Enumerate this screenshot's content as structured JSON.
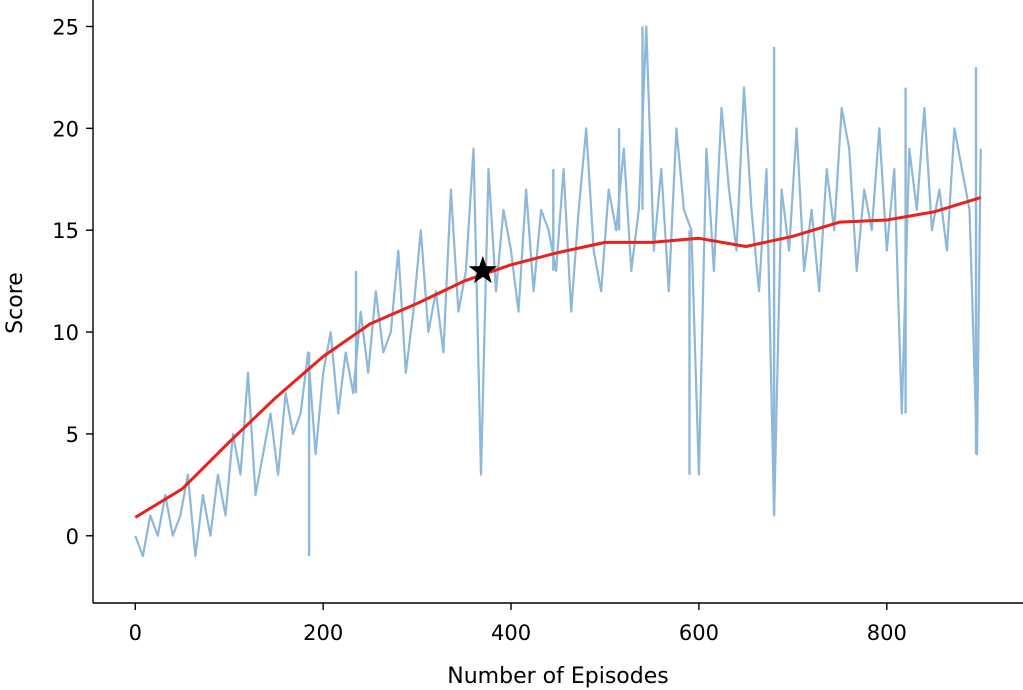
{
  "chart_data": {
    "type": "line",
    "title": "",
    "xlabel": "Number of Episodes",
    "ylabel": "Score",
    "xlim": [
      -45,
      945
    ],
    "ylim": [
      -3.3,
      26.3
    ],
    "xticks": [
      0,
      200,
      400,
      600,
      800
    ],
    "yticks": [
      0,
      5,
      10,
      15,
      20,
      25
    ],
    "grid": false,
    "legend": "none",
    "spines": [
      "left",
      "bottom"
    ],
    "series": [
      {
        "role": "raw-scores",
        "color": "#8db8d9",
        "x": [
          0,
          8,
          16,
          24,
          32,
          40,
          48,
          56,
          64,
          72,
          80,
          88,
          96,
          104,
          112,
          120,
          128,
          136,
          144,
          152,
          160,
          168,
          176,
          184,
          192,
          200,
          208,
          216,
          224,
          232,
          240,
          248,
          256,
          264,
          272,
          280,
          288,
          296,
          304,
          312,
          320,
          328,
          336,
          344,
          352,
          360,
          368,
          376,
          384,
          392,
          400,
          408,
          416,
          424,
          432,
          440,
          448,
          456,
          464,
          472,
          480,
          488,
          496,
          504,
          512,
          520,
          528,
          536,
          544,
          552,
          560,
          568,
          576,
          584,
          592,
          600,
          608,
          616,
          624,
          632,
          640,
          648,
          656,
          664,
          672,
          680,
          688,
          696,
          704,
          712,
          720,
          728,
          736,
          744,
          752,
          760,
          768,
          776,
          784,
          792,
          800,
          808,
          816,
          824,
          832,
          840,
          848,
          856,
          864,
          872,
          880,
          888,
          896,
          900
        ],
        "y": [
          0,
          -1,
          1,
          0,
          2,
          0,
          1,
          3,
          -1,
          2,
          0,
          3,
          1,
          5,
          3,
          8,
          2,
          4,
          6,
          3,
          7,
          5,
          6,
          9,
          4,
          8,
          10,
          6,
          9,
          7,
          11,
          8,
          12,
          9,
          10,
          14,
          8,
          11,
          15,
          10,
          12,
          9,
          17,
          11,
          13,
          19,
          3,
          18,
          12,
          16,
          14,
          11,
          17,
          12,
          16,
          15,
          13,
          18,
          11,
          16,
          20,
          14,
          12,
          17,
          15,
          19,
          13,
          16,
          25,
          14,
          18,
          12,
          20,
          16,
          15,
          3,
          19,
          13,
          21,
          17,
          14,
          22,
          16,
          12,
          18,
          1,
          17,
          14,
          20,
          13,
          16,
          12,
          18,
          15,
          21,
          19,
          13,
          17,
          15,
          20,
          14,
          18,
          6,
          19,
          16,
          21,
          15,
          17,
          14,
          20,
          18,
          16,
          4,
          19
        ],
        "spikes": [
          {
            "x": 185,
            "y": -1
          },
          {
            "x": 235,
            "y": 13
          },
          {
            "x": 370,
            "y": 3
          },
          {
            "x": 445,
            "y": 18
          },
          {
            "x": 515,
            "y": 20
          },
          {
            "x": 540,
            "y": 25
          },
          {
            "x": 590,
            "y": 3
          },
          {
            "x": 625,
            "y": 21
          },
          {
            "x": 680,
            "y": 24
          },
          {
            "x": 678,
            "y": 1
          },
          {
            "x": 820,
            "y": 22
          },
          {
            "x": 895,
            "y": 23
          },
          {
            "x": 898,
            "y": 4
          }
        ]
      },
      {
        "role": "moving-average",
        "color": "#e8211b",
        "x": [
          0,
          50,
          100,
          150,
          200,
          250,
          300,
          350,
          400,
          450,
          500,
          550,
          600,
          650,
          700,
          750,
          800,
          850,
          900
        ],
        "y": [
          0.9,
          2.3,
          4.6,
          6.8,
          8.8,
          10.4,
          11.4,
          12.5,
          13.3,
          13.9,
          14.4,
          14.4,
          14.6,
          14.2,
          14.7,
          15.4,
          15.5,
          15.9,
          16.6
        ]
      }
    ],
    "annotations": [
      {
        "type": "star-marker",
        "x": 370,
        "y": 13.0,
        "color": "#000000"
      }
    ]
  }
}
